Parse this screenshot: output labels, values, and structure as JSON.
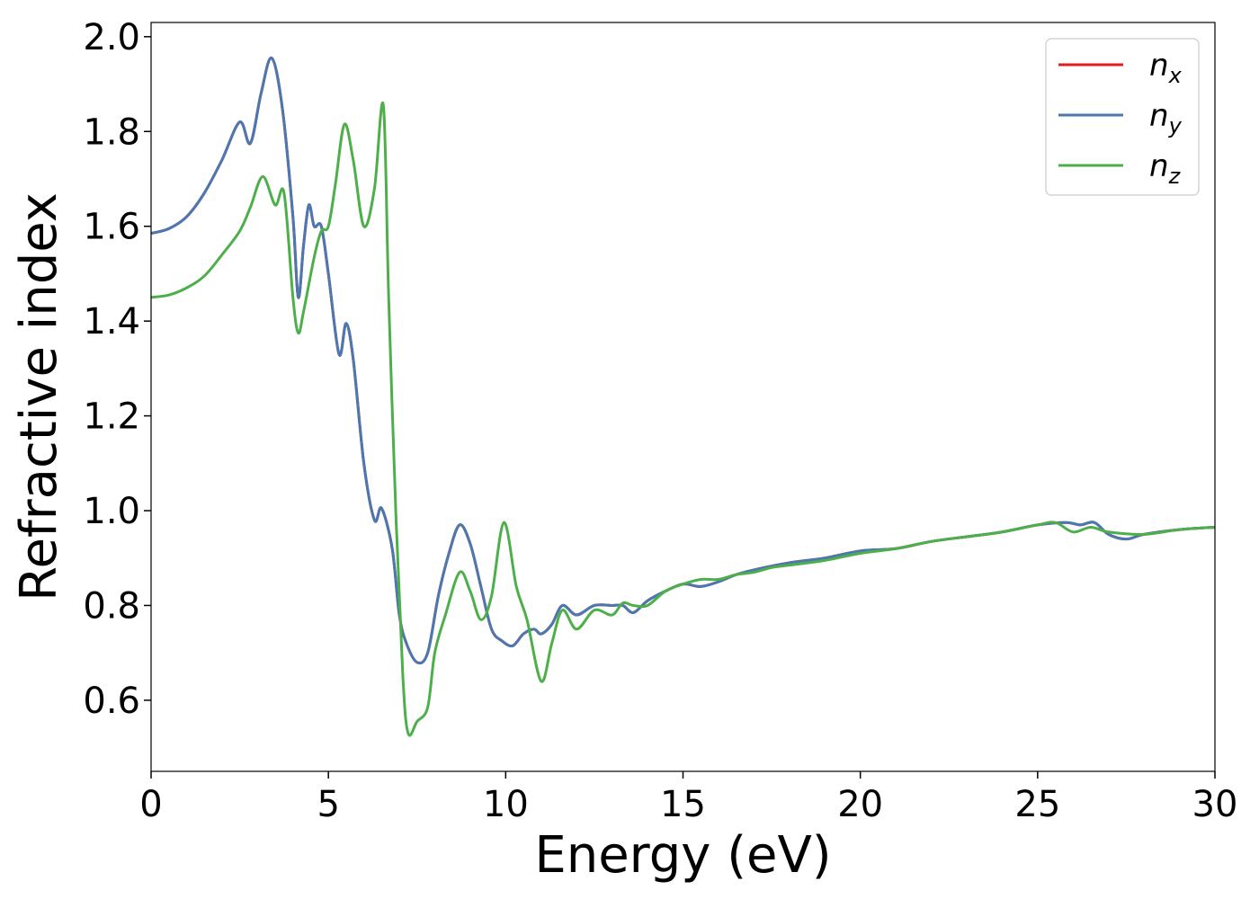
{
  "chart_data": {
    "type": "line",
    "xlabel": "Energy (eV)",
    "ylabel": "Refractive index",
    "xlim": [
      0,
      30
    ],
    "ylim": [
      0.45,
      2.03
    ],
    "xticks": [
      "0",
      "5",
      "10",
      "15",
      "20",
      "25",
      "30"
    ],
    "yticks": [
      "0.6",
      "0.8",
      "1.0",
      "1.2",
      "1.4",
      "1.6",
      "1.8",
      "2.0"
    ],
    "grid": false,
    "legend": "top-right",
    "series": [
      {
        "name": "n",
        "sub": "x",
        "color": "#e41a1c",
        "x": [
          0,
          0.5,
          1,
          1.5,
          2,
          2.5,
          2.8,
          3.1,
          3.4,
          3.7,
          4.0,
          4.15,
          4.3,
          4.45,
          4.6,
          4.8,
          5.0,
          5.3,
          5.5,
          5.7,
          6.0,
          6.3,
          6.5,
          6.8,
          7.0,
          7.2,
          7.5,
          7.8,
          8.1,
          8.4,
          8.7,
          9.0,
          9.3,
          9.6,
          9.9,
          10.2,
          10.5,
          10.8,
          11.0,
          11.3,
          11.6,
          12.0,
          12.5,
          13.0,
          13.3,
          13.6,
          14.0,
          14.5,
          15.0,
          15.5,
          16.0,
          16.5,
          17.0,
          18.0,
          19.0,
          20.0,
          21.0,
          22.0,
          23.0,
          24.0,
          25.0,
          25.8,
          26.2,
          26.6,
          27.0,
          27.5,
          28.0,
          29.0,
          30.0
        ],
        "y": [
          1.585,
          1.595,
          1.62,
          1.67,
          1.74,
          1.82,
          1.775,
          1.88,
          1.955,
          1.85,
          1.62,
          1.45,
          1.56,
          1.645,
          1.6,
          1.6,
          1.5,
          1.33,
          1.395,
          1.32,
          1.1,
          0.98,
          1.005,
          0.92,
          0.78,
          0.72,
          0.68,
          0.7,
          0.82,
          0.91,
          0.97,
          0.93,
          0.84,
          0.75,
          0.725,
          0.715,
          0.74,
          0.75,
          0.74,
          0.76,
          0.8,
          0.78,
          0.8,
          0.8,
          0.8,
          0.785,
          0.81,
          0.83,
          0.845,
          0.84,
          0.85,
          0.865,
          0.875,
          0.89,
          0.9,
          0.915,
          0.92,
          0.935,
          0.945,
          0.955,
          0.97,
          0.975,
          0.97,
          0.975,
          0.95,
          0.94,
          0.95,
          0.96,
          0.965
        ]
      },
      {
        "name": "n",
        "sub": "y",
        "color": "#4a78b0",
        "x": [
          0,
          0.5,
          1,
          1.5,
          2,
          2.5,
          2.8,
          3.1,
          3.4,
          3.7,
          4.0,
          4.15,
          4.3,
          4.45,
          4.6,
          4.8,
          5.0,
          5.3,
          5.5,
          5.7,
          6.0,
          6.3,
          6.5,
          6.8,
          7.0,
          7.2,
          7.5,
          7.8,
          8.1,
          8.4,
          8.7,
          9.0,
          9.3,
          9.6,
          9.9,
          10.2,
          10.5,
          10.8,
          11.0,
          11.3,
          11.6,
          12.0,
          12.5,
          13.0,
          13.3,
          13.6,
          14.0,
          14.5,
          15.0,
          15.5,
          16.0,
          16.5,
          17.0,
          18.0,
          19.0,
          20.0,
          21.0,
          22.0,
          23.0,
          24.0,
          25.0,
          25.8,
          26.2,
          26.6,
          27.0,
          27.5,
          28.0,
          29.0,
          30.0
        ],
        "y": [
          1.585,
          1.595,
          1.62,
          1.67,
          1.74,
          1.82,
          1.775,
          1.88,
          1.955,
          1.85,
          1.62,
          1.45,
          1.56,
          1.645,
          1.6,
          1.6,
          1.5,
          1.33,
          1.395,
          1.32,
          1.1,
          0.98,
          1.005,
          0.92,
          0.78,
          0.72,
          0.68,
          0.7,
          0.82,
          0.91,
          0.97,
          0.93,
          0.84,
          0.75,
          0.725,
          0.715,
          0.74,
          0.75,
          0.74,
          0.76,
          0.8,
          0.78,
          0.8,
          0.8,
          0.8,
          0.785,
          0.81,
          0.83,
          0.845,
          0.84,
          0.85,
          0.865,
          0.875,
          0.89,
          0.9,
          0.915,
          0.92,
          0.935,
          0.945,
          0.955,
          0.97,
          0.975,
          0.97,
          0.975,
          0.95,
          0.94,
          0.95,
          0.96,
          0.965
        ]
      },
      {
        "name": "n",
        "sub": "z",
        "color": "#4daf4a",
        "x": [
          0,
          0.5,
          1,
          1.5,
          2,
          2.5,
          2.8,
          3.15,
          3.5,
          3.75,
          4.0,
          4.15,
          4.3,
          4.6,
          4.8,
          5.0,
          5.2,
          5.45,
          5.7,
          6.0,
          6.3,
          6.55,
          6.7,
          6.9,
          7.1,
          7.25,
          7.5,
          7.8,
          8.0,
          8.3,
          8.7,
          9.0,
          9.3,
          9.6,
          9.95,
          10.3,
          10.6,
          11.0,
          11.3,
          11.6,
          12.0,
          12.5,
          13.0,
          13.3,
          13.6,
          14.0,
          14.5,
          15.0,
          15.5,
          16.0,
          16.5,
          17.0,
          17.5,
          18.0,
          19.0,
          20.0,
          21.0,
          22.0,
          23.0,
          24.0,
          25.0,
          25.5,
          26.0,
          26.5,
          27.0,
          28.0,
          29.0,
          30.0
        ],
        "y": [
          1.45,
          1.455,
          1.47,
          1.495,
          1.54,
          1.59,
          1.64,
          1.705,
          1.645,
          1.67,
          1.45,
          1.375,
          1.42,
          1.535,
          1.59,
          1.6,
          1.69,
          1.815,
          1.74,
          1.6,
          1.68,
          1.855,
          1.45,
          1.0,
          0.65,
          0.53,
          0.555,
          0.585,
          0.7,
          0.78,
          0.87,
          0.83,
          0.77,
          0.82,
          0.975,
          0.84,
          0.77,
          0.64,
          0.72,
          0.79,
          0.75,
          0.79,
          0.78,
          0.805,
          0.8,
          0.8,
          0.83,
          0.845,
          0.855,
          0.855,
          0.865,
          0.87,
          0.88,
          0.885,
          0.895,
          0.91,
          0.92,
          0.935,
          0.945,
          0.955,
          0.97,
          0.975,
          0.955,
          0.965,
          0.955,
          0.95,
          0.96,
          0.965
        ]
      }
    ]
  }
}
